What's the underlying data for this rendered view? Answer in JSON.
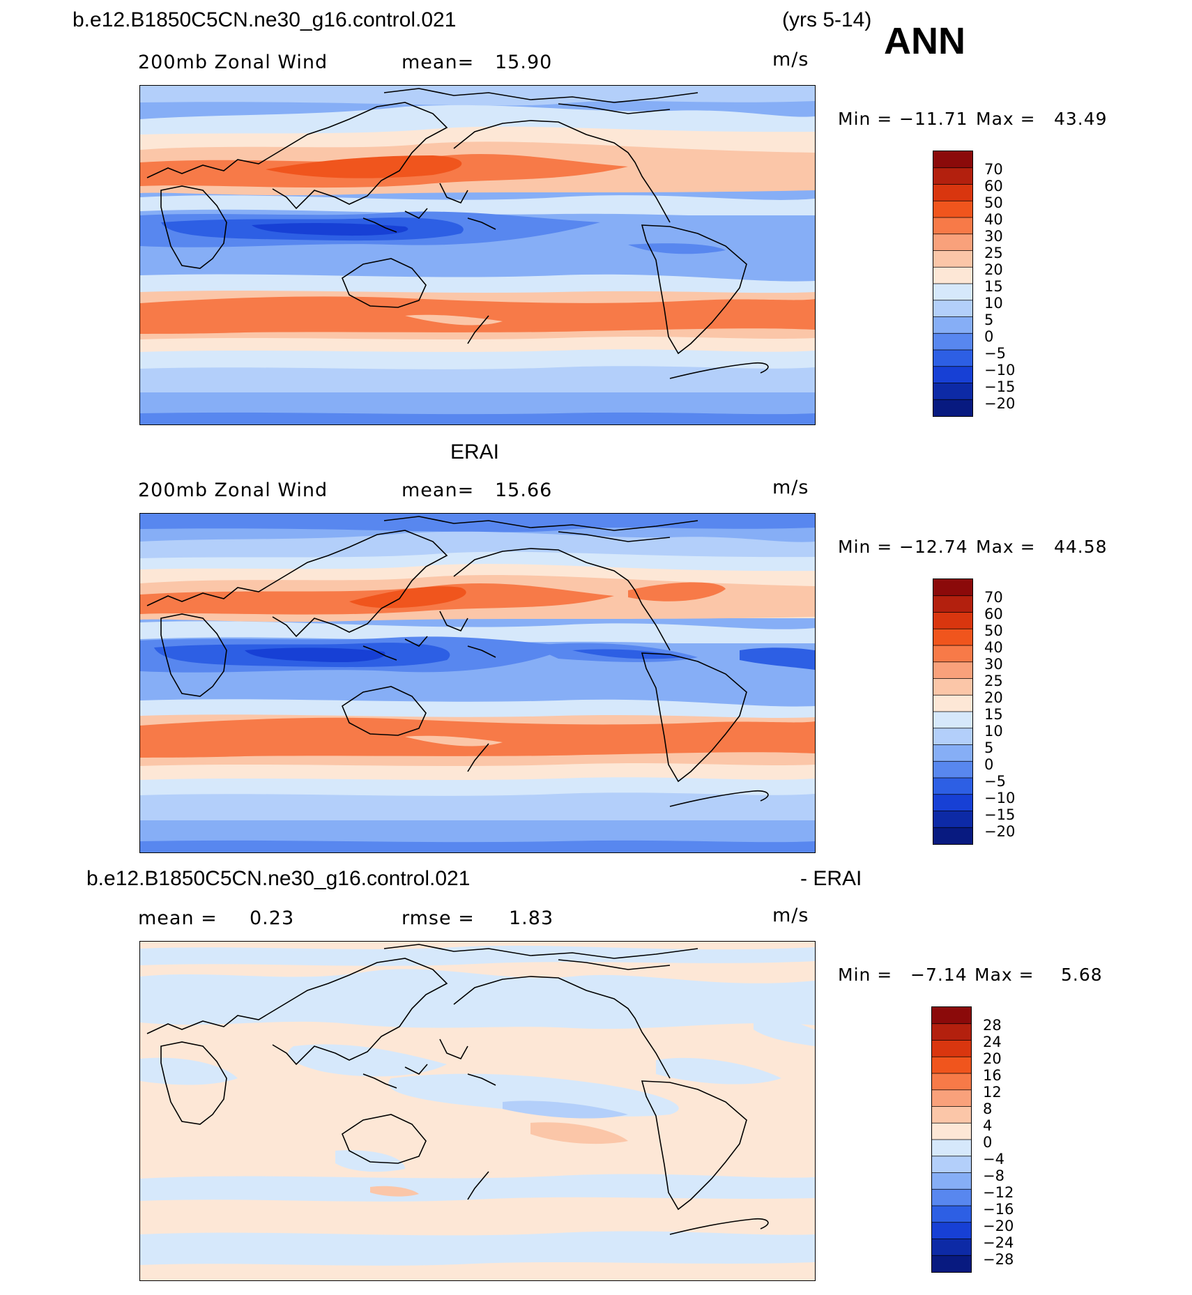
{
  "header": {
    "case_name": "b.e12.B1850C5CN.ne30_g16.control.021",
    "years": "(yrs 5-14)",
    "season": "ANN"
  },
  "panels": [
    {
      "variable": "200mb Zonal Wind",
      "mean_text": "mean=",
      "mean_value": "15.90",
      "units": "m/s",
      "min_text": "Min =",
      "min_value": "−11.71",
      "max_text": "Max =",
      "max_value": "43.49",
      "colorbar_levels": [
        "70",
        "60",
        "50",
        "40",
        "30",
        "25",
        "20",
        "15",
        "10",
        "5",
        "0",
        "−5",
        "−10",
        "−15",
        "−20"
      ],
      "colorbar_colors": [
        "#8b0a0a",
        "#b3200e",
        "#d9360f",
        "#f0551d",
        "#f77a48",
        "#f9a17b",
        "#fbc6a8",
        "#fde7d6",
        "#d6e8fb",
        "#b3cffa",
        "#86aef6",
        "#5887ef",
        "#2d5fe4",
        "#1740d5",
        "#0d2aa6",
        "#081a80"
      ]
    },
    {
      "title": "ERAI",
      "variable": "200mb Zonal Wind",
      "mean_text": "mean=",
      "mean_value": "15.66",
      "units": "m/s",
      "min_text": "Min =",
      "min_value": "−12.74",
      "max_text": "Max =",
      "max_value": "44.58",
      "colorbar_levels": [
        "70",
        "60",
        "50",
        "40",
        "30",
        "25",
        "20",
        "15",
        "10",
        "5",
        "0",
        "−5",
        "−10",
        "−15",
        "−20"
      ],
      "colorbar_colors": [
        "#8b0a0a",
        "#b3200e",
        "#d9360f",
        "#f0551d",
        "#f77a48",
        "#f9a17b",
        "#fbc6a8",
        "#fde7d6",
        "#d6e8fb",
        "#b3cffa",
        "#86aef6",
        "#5887ef",
        "#2d5fe4",
        "#1740d5",
        "#0d2aa6",
        "#081a80"
      ]
    },
    {
      "title_left": "b.e12.B1850C5CN.ne30_g16.control.021",
      "title_right": "- ERAI",
      "mean_text": "mean =",
      "mean_value": "0.23",
      "rmse_text": "rmse =",
      "rmse_value": "1.83",
      "units": "m/s",
      "min_text": "Min =",
      "min_value": "−7.14",
      "max_text": "Max =",
      "max_value": "5.68",
      "colorbar_levels": [
        "28",
        "24",
        "20",
        "16",
        "12",
        "8",
        "4",
        "0",
        "−4",
        "−8",
        "−12",
        "−16",
        "−20",
        "−24",
        "−28"
      ],
      "colorbar_colors": [
        "#8b0a0a",
        "#b3200e",
        "#d9360f",
        "#f0551d",
        "#f77a48",
        "#f9a17b",
        "#fbc6a8",
        "#fde7d6",
        "#d6e8fb",
        "#b3cffa",
        "#86aef6",
        "#5887ef",
        "#2d5fe4",
        "#1740d5",
        "#0d2aa6",
        "#081a80"
      ]
    }
  ]
}
